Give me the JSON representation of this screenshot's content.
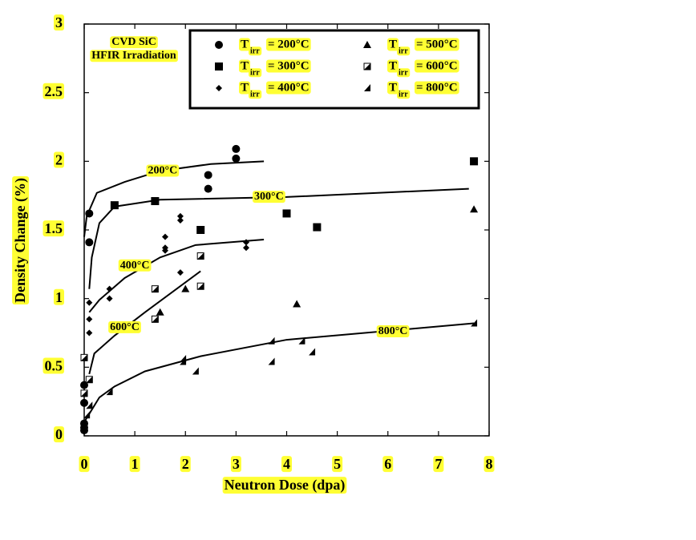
{
  "chart_data": {
    "type": "scatter",
    "xlabel": "Neutron Dose (dpa)",
    "ylabel": "Density Change (%)",
    "note": [
      "CVD SiC",
      "HFIR Irradiation"
    ],
    "legend_prefix": "T",
    "legend_subscript": "irr",
    "xlim": [
      0,
      8
    ],
    "ylim": [
      0,
      3
    ],
    "xticks": [
      0,
      1,
      2,
      3,
      4,
      5,
      6,
      7,
      8
    ],
    "yticks": [
      0,
      0.5,
      1,
      1.5,
      2,
      2.5,
      3
    ],
    "highlight_color": "#ffff33",
    "series": [
      {
        "name": "= 200°C",
        "marker": "circle",
        "color": "#000000",
        "x": [
          0,
          0,
          0,
          0,
          0,
          0.1,
          0.1,
          2.45,
          2.45,
          3.0,
          3.0
        ],
        "values": [
          0.04,
          0.06,
          0.09,
          0.24,
          0.37,
          1.62,
          1.41,
          1.9,
          1.8,
          2.09,
          2.02
        ]
      },
      {
        "name": "= 300°C",
        "marker": "square",
        "color": "#000000",
        "x": [
          0.6,
          1.4,
          2.3,
          4.0,
          4.6,
          7.7
        ],
        "values": [
          1.68,
          1.71,
          1.5,
          1.62,
          1.52,
          2.0
        ]
      },
      {
        "name": "= 400°C",
        "marker": "diamond",
        "color": "#000000",
        "x": [
          0.1,
          0.1,
          0.1,
          0.5,
          0.5,
          1.6,
          1.6,
          1.6,
          1.9,
          1.9,
          1.9,
          3.2,
          3.2
        ],
        "values": [
          0.97,
          0.85,
          0.75,
          1.07,
          1.0,
          1.45,
          1.37,
          1.35,
          1.6,
          1.57,
          1.19,
          1.41,
          1.37
        ]
      },
      {
        "name": "= 500°C",
        "marker": "triangle",
        "color": "#000000",
        "x": [
          1.5,
          2.0,
          4.2,
          7.7
        ],
        "values": [
          0.9,
          1.07,
          0.96,
          1.65
        ]
      },
      {
        "name": "= 600°C",
        "marker": "half-square",
        "color": "#000000",
        "x": [
          0,
          0,
          0.1,
          1.4,
          1.4,
          2.3,
          2.3
        ],
        "values": [
          0.57,
          0.31,
          0.41,
          1.07,
          0.85,
          1.31,
          1.09
        ]
      },
      {
        "name": "= 800°C",
        "marker": "half-triangle",
        "color": "#000000",
        "x": [
          0.05,
          0.1,
          0.5,
          1.95,
          1.95,
          2.2,
          3.7,
          3.7,
          4.3,
          4.5,
          7.7
        ],
        "values": [
          0.15,
          0.22,
          0.32,
          0.54,
          0.56,
          0.47,
          0.69,
          0.54,
          0.69,
          0.61,
          0.82
        ]
      }
    ],
    "fits": [
      {
        "label": "200°C",
        "x": [
          0,
          0.05,
          0.25,
          0.8,
          1.5,
          2.5,
          3.55
        ],
        "values": [
          1.45,
          1.6,
          1.77,
          1.85,
          1.93,
          1.98,
          2.0
        ]
      },
      {
        "label": "300°C",
        "x": [
          0.1,
          0.15,
          0.3,
          0.6,
          1.5,
          4,
          7.6
        ],
        "values": [
          1.07,
          1.3,
          1.55,
          1.67,
          1.72,
          1.74,
          1.8
        ]
      },
      {
        "label": "400°C",
        "x": [
          0.1,
          0.3,
          0.8,
          1.5,
          2.2,
          3.55
        ],
        "values": [
          0.9,
          0.99,
          1.15,
          1.3,
          1.39,
          1.43
        ]
      },
      {
        "label": "600°C",
        "x": [
          0.1,
          0.2,
          0.6,
          1.2,
          2.3
        ],
        "values": [
          0.45,
          0.6,
          0.73,
          0.9,
          1.2
        ]
      },
      {
        "label": "800°C",
        "x": [
          0,
          0.3,
          0.6,
          1.2,
          2.3,
          4,
          7.7
        ],
        "values": [
          0.1,
          0.28,
          0.36,
          0.47,
          0.58,
          0.7,
          0.82
        ]
      }
    ]
  }
}
